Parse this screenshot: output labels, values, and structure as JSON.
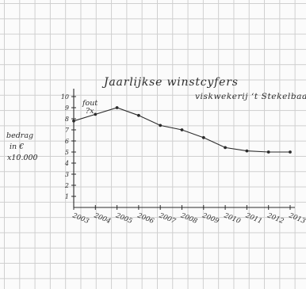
{
  "chart_data": {
    "type": "line",
    "title": "Jaarlijkse winstcyfers",
    "subtitle": "viskwekerij ‘t Stekelbaarsje",
    "ylabel": [
      "bedrag",
      "in €",
      "x10.000"
    ],
    "annotation": [
      "fout",
      "?x"
    ],
    "ylim": [
      0,
      10
    ],
    "yticks": [
      "1",
      "2",
      "3",
      "4",
      "5",
      "6",
      "7",
      "8",
      "9",
      "10"
    ],
    "x": [
      "2003",
      "2004",
      "2005",
      "2006",
      "2007",
      "2008",
      "2009",
      "2010",
      "2011",
      "2012",
      "2013"
    ],
    "values": [
      7.8,
      8.4,
      9.0,
      8.3,
      7.4,
      7.0,
      6.3,
      5.4,
      5.1,
      5.0,
      5.0
    ],
    "grid": true,
    "line_color": "#2b2b2b"
  }
}
